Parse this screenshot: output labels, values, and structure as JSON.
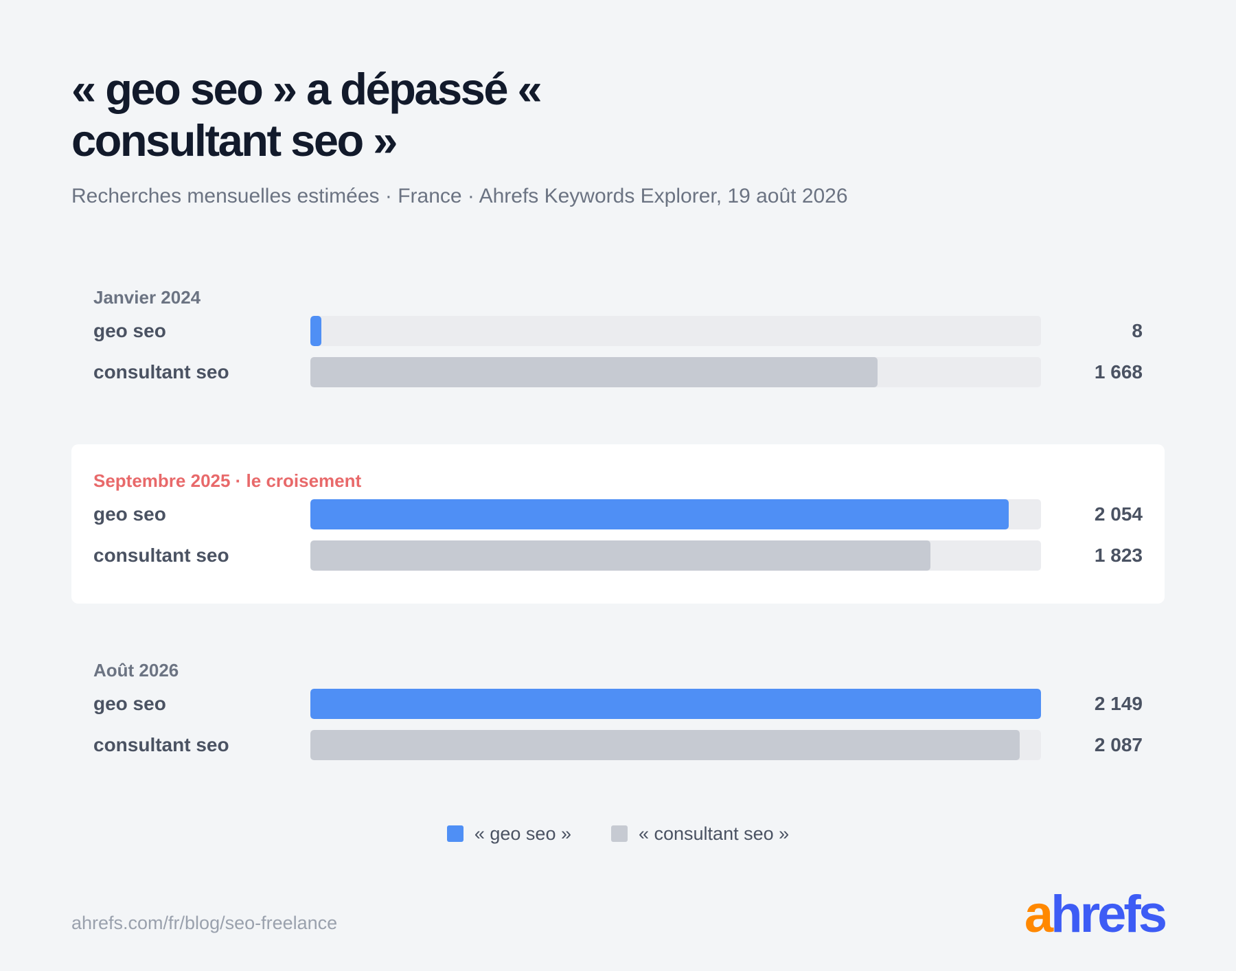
{
  "header": {
    "title": "« geo seo » a dépassé « consultant seo »",
    "subtitle": "Recherches mensuelles estimées · France · Ahrefs Keywords Explorer, 19 août 2026"
  },
  "chart_data": {
    "type": "bar",
    "orientation": "horizontal",
    "groups": [
      {
        "label": "Janvier 2024",
        "highlight": false,
        "rows": [
          {
            "name": "geo seo",
            "value": 8,
            "value_label": "8"
          },
          {
            "name": "consultant seo",
            "value": 1668,
            "value_label": "1 668"
          }
        ]
      },
      {
        "label": "Septembre 2025 · le croisement",
        "highlight": true,
        "rows": [
          {
            "name": "geo seo",
            "value": 2054,
            "value_label": "2 054"
          },
          {
            "name": "consultant seo",
            "value": 1823,
            "value_label": "1 823"
          }
        ]
      },
      {
        "label": "Août 2026",
        "highlight": false,
        "rows": [
          {
            "name": "geo seo",
            "value": 2149,
            "value_label": "2 149"
          },
          {
            "name": "consultant seo",
            "value": 2087,
            "value_label": "2 087"
          }
        ]
      }
    ],
    "xlim": [
      0,
      2149
    ],
    "legend": {
      "placement": "bottom-center",
      "items": [
        {
          "label": "« geo seo »",
          "color": "#4f8ff5"
        },
        {
          "label": "« consultant seo »",
          "color": "#c6cad2"
        }
      ]
    },
    "colors": {
      "geo seo": "#4f8ff5",
      "consultant seo": "#c6cad2",
      "track": "#ebecef",
      "highlight_label": "#e8696a"
    }
  },
  "footer": {
    "url": "ahrefs.com/fr/blog/seo-freelance",
    "logo_a": "a",
    "logo_rest": "hrefs"
  }
}
